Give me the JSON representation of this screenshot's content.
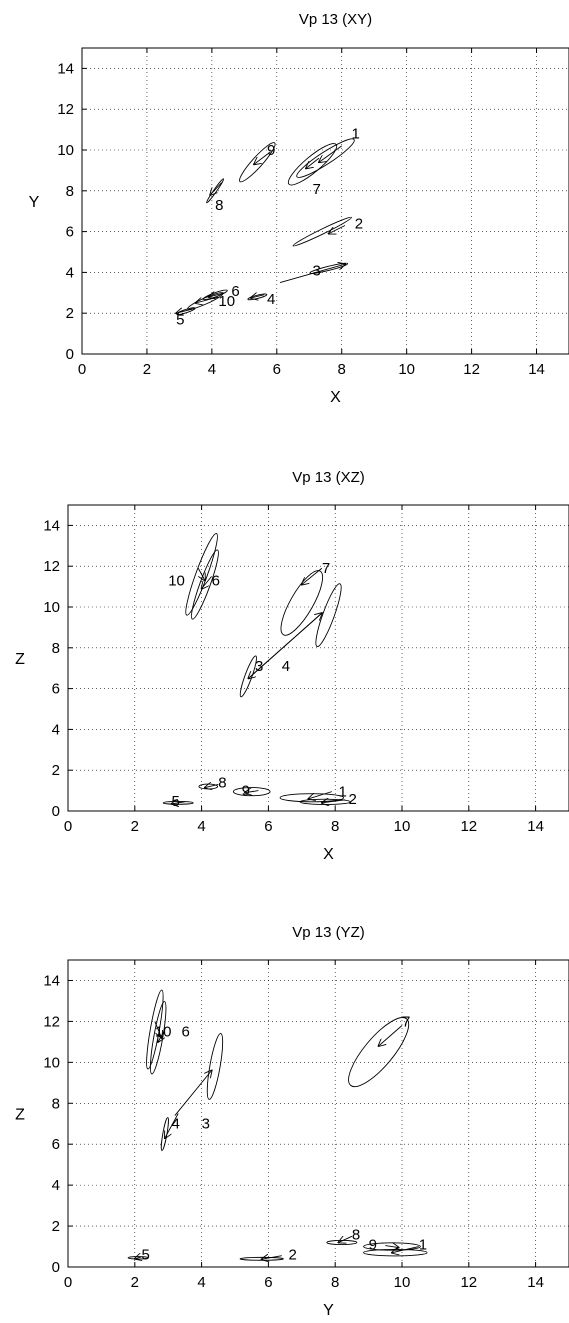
{
  "chart_data": [
    {
      "type": "scatter",
      "title": "Vp 13 (XY)",
      "xlabel": "X",
      "ylabel": "Y",
      "xlim": [
        0,
        15
      ],
      "ylim": [
        0,
        15
      ],
      "xticks": [
        "0",
        "2",
        "4",
        "6",
        "8",
        "10",
        "12",
        "14"
      ],
      "yticks": [
        "0",
        "2",
        "4",
        "6",
        "8",
        "10",
        "12",
        "14"
      ],
      "grid": true,
      "points": [
        {
          "label": "1",
          "x": 7.5,
          "y": 9.6,
          "label_x": 8.3,
          "label_y": 10.8,
          "ellipse": {
            "rx": 1.05,
            "ry": 0.3,
            "angle": 33
          },
          "arrow": [
            8.0,
            10.2,
            7.3,
            9.4
          ]
        },
        {
          "label": "2",
          "x": 7.4,
          "y": 6.0,
          "label_x": 8.4,
          "label_y": 6.4,
          "ellipse": {
            "rx": 1.0,
            "ry": 0.12,
            "angle": 26
          },
          "arrow": [
            8.1,
            6.3,
            7.6,
            5.9
          ]
        },
        {
          "label": "3",
          "x": 7.6,
          "y": 4.2,
          "label_x": 7.1,
          "label_y": 4.1,
          "ellipse": {
            "rx": 0.6,
            "ry": 0.1,
            "angle": 14
          },
          "arrow": [
            6.1,
            3.5,
            8.1,
            4.4
          ]
        },
        {
          "label": "4",
          "x": 5.4,
          "y": 2.8,
          "label_x": 5.7,
          "label_y": 2.7,
          "ellipse": {
            "rx": 0.3,
            "ry": 0.08,
            "angle": 14
          },
          "arrow": [
            5.6,
            2.9,
            5.2,
            2.75
          ]
        },
        {
          "label": "5",
          "x": 3.2,
          "y": 2.1,
          "label_x": 2.9,
          "label_y": 1.7,
          "ellipse": {
            "rx": 0.3,
            "ry": 0.08,
            "angle": 18
          },
          "arrow": [
            3.4,
            2.2,
            2.9,
            2.0
          ]
        },
        {
          "label": "6",
          "x": 4.1,
          "y": 2.9,
          "label_x": 4.6,
          "label_y": 3.1,
          "ellipse": {
            "rx": 0.4,
            "ry": 0.1,
            "angle": 20
          },
          "arrow": [
            4.4,
            3.0,
            3.9,
            2.8
          ]
        },
        {
          "label": "7",
          "x": 7.1,
          "y": 9.3,
          "label_x": 7.1,
          "label_y": 8.1,
          "ellipse": {
            "rx": 0.95,
            "ry": 0.38,
            "angle": 40
          },
          "arrow": [
            7.3,
            9.6,
            6.9,
            9.1
          ]
        },
        {
          "label": "8",
          "x": 4.1,
          "y": 8.0,
          "label_x": 4.1,
          "label_y": 7.3,
          "ellipse": {
            "rx": 0.45,
            "ry": 0.07,
            "angle": 55
          },
          "arrow": [
            4.3,
            8.4,
            3.95,
            7.8
          ]
        },
        {
          "label": "9",
          "x": 5.4,
          "y": 9.4,
          "label_x": 5.7,
          "label_y": 10.0,
          "ellipse": {
            "rx": 0.8,
            "ry": 0.25,
            "angle": 48
          },
          "arrow": [
            5.8,
            9.9,
            5.3,
            9.3
          ]
        },
        {
          "label": "10",
          "x": 3.8,
          "y": 2.6,
          "label_x": 4.2,
          "label_y": 2.6,
          "ellipse": {
            "rx": 0.6,
            "ry": 0.15,
            "angle": 24
          },
          "arrow": [
            4.2,
            2.8,
            3.5,
            2.5
          ]
        }
      ]
    },
    {
      "type": "scatter",
      "title": "Vp 13 (XZ)",
      "xlabel": "X",
      "ylabel": "Z",
      "xlim": [
        0,
        15
      ],
      "ylim": [
        0,
        15
      ],
      "xticks": [
        "0",
        "2",
        "4",
        "6",
        "8",
        "10",
        "12",
        "14"
      ],
      "yticks": [
        "0",
        "2",
        "4",
        "6",
        "8",
        "10",
        "12",
        "14"
      ],
      "grid": true,
      "points": [
        {
          "label": "1",
          "x": 7.3,
          "y": 0.65,
          "label_x": 8.1,
          "label_y": 0.95,
          "ellipse": {
            "rx": 0.95,
            "ry": 0.2,
            "angle": 0
          },
          "arrow": [
            7.9,
            0.95,
            7.2,
            0.6
          ]
        },
        {
          "label": "2",
          "x": 7.7,
          "y": 0.45,
          "label_x": 8.4,
          "label_y": 0.6,
          "ellipse": {
            "rx": 0.75,
            "ry": 0.13,
            "angle": 0
          },
          "arrow": [
            8.3,
            0.55,
            7.6,
            0.4
          ]
        },
        {
          "label": "3",
          "x": 5.4,
          "y": 6.6,
          "label_x": 5.6,
          "label_y": 7.1,
          "ellipse": {
            "rx": 0.65,
            "ry": 0.17,
            "angle": 70
          },
          "arrow": [
            7.6,
            9.7,
            5.4,
            6.5
          ]
        },
        {
          "label": "4",
          "x": 7.8,
          "y": 9.6,
          "label_x": 6.4,
          "label_y": 7.1,
          "ellipse": {
            "rx": 1.0,
            "ry": 0.28,
            "angle": 70
          },
          "arrow": [
            5.4,
            6.5,
            7.6,
            9.7
          ]
        },
        {
          "label": "5",
          "x": 3.3,
          "y": 0.4,
          "label_x": 3.1,
          "label_y": 0.5,
          "ellipse": {
            "rx": 0.45,
            "ry": 0.07,
            "angle": 0
          },
          "arrow": [
            3.5,
            0.45,
            3.1,
            0.35
          ]
        },
        {
          "label": "6",
          "x": 4.1,
          "y": 11.1,
          "label_x": 4.3,
          "label_y": 11.3,
          "ellipse": {
            "rx": 1.1,
            "ry": 0.25,
            "angle": 70
          },
          "arrow": [
            4.3,
            11.5,
            4.0,
            10.9
          ]
        },
        {
          "label": "7",
          "x": 7.0,
          "y": 10.2,
          "label_x": 7.6,
          "label_y": 11.9,
          "ellipse": {
            "rx": 1.1,
            "ry": 0.55,
            "angle": 60
          },
          "arrow": [
            7.6,
            11.9,
            7.0,
            11.1
          ]
        },
        {
          "label": "8",
          "x": 4.2,
          "y": 1.2,
          "label_x": 4.5,
          "label_y": 1.4,
          "ellipse": {
            "rx": 0.28,
            "ry": 0.12,
            "angle": 0
          },
          "arrow": [
            4.5,
            1.3,
            4.1,
            1.15
          ]
        },
        {
          "label": "9",
          "x": 5.5,
          "y": 0.95,
          "label_x": 5.2,
          "label_y": 1.0,
          "ellipse": {
            "rx": 0.55,
            "ry": 0.2,
            "angle": 0
          },
          "arrow": [
            5.7,
            1.0,
            5.3,
            0.9
          ]
        },
        {
          "label": "10",
          "x": 4.0,
          "y": 11.6,
          "label_x": 3.0,
          "label_y": 11.3,
          "ellipse": {
            "rx": 1.3,
            "ry": 0.28,
            "angle": 70
          },
          "arrow": [
            3.9,
            11.9,
            4.1,
            11.3
          ]
        }
      ]
    },
    {
      "type": "scatter",
      "title": "Vp 13 (YZ)",
      "xlabel": "Y",
      "ylabel": "Z",
      "xlim": [
        0,
        15
      ],
      "ylim": [
        0,
        15
      ],
      "xticks": [
        "0",
        "2",
        "4",
        "6",
        "8",
        "10",
        "12",
        "14"
      ],
      "yticks": [
        "0",
        "2",
        "4",
        "6",
        "8",
        "10",
        "12",
        "14"
      ],
      "grid": true,
      "points": [
        {
          "label": "1",
          "x": 9.8,
          "y": 0.7,
          "label_x": 10.5,
          "label_y": 1.1,
          "ellipse": {
            "rx": 0.95,
            "ry": 0.16,
            "angle": 0
          },
          "arrow": [
            10.5,
            1.0,
            9.7,
            0.7
          ]
        },
        {
          "label": "2",
          "x": 5.8,
          "y": 0.4,
          "label_x": 6.6,
          "label_y": 0.6,
          "ellipse": {
            "rx": 0.65,
            "ry": 0.07,
            "angle": 0
          },
          "arrow": [
            6.4,
            0.55,
            5.8,
            0.38
          ]
        },
        {
          "label": "3",
          "x": 4.4,
          "y": 9.8,
          "label_x": 4.0,
          "label_y": 7.0,
          "ellipse": {
            "rx": 1.0,
            "ry": 0.25,
            "angle": 80
          },
          "arrow": [
            3.2,
            7.4,
            4.3,
            9.6
          ]
        },
        {
          "label": "4",
          "x": 2.9,
          "y": 6.5,
          "label_x": 3.1,
          "label_y": 7.0,
          "ellipse": {
            "rx": 0.5,
            "ry": 0.1,
            "angle": 80
          },
          "arrow": [
            3.3,
            7.5,
            2.9,
            6.3
          ]
        },
        {
          "label": "5",
          "x": 2.1,
          "y": 0.45,
          "label_x": 2.2,
          "label_y": 0.6,
          "ellipse": {
            "rx": 0.3,
            "ry": 0.06,
            "angle": 0
          },
          "arrow": [
            2.2,
            0.5,
            2.0,
            0.4
          ]
        },
        {
          "label": "6",
          "x": 2.7,
          "y": 11.2,
          "label_x": 3.4,
          "label_y": 11.5,
          "ellipse": {
            "rx": 1.1,
            "ry": 0.22,
            "angle": 80
          },
          "arrow": [
            2.9,
            11.6,
            2.7,
            11.0
          ]
        },
        {
          "label": "7",
          "x": 9.3,
          "y": 10.5,
          "label_x": 10.0,
          "label_y": 12.0,
          "ellipse": {
            "rx": 1.3,
            "ry": 0.7,
            "angle": 50
          },
          "arrow": [
            10.0,
            11.8,
            9.3,
            10.8
          ]
        },
        {
          "label": "8",
          "x": 8.2,
          "y": 1.2,
          "label_x": 8.5,
          "label_y": 1.6,
          "ellipse": {
            "rx": 0.45,
            "ry": 0.1,
            "angle": 0
          },
          "arrow": [
            8.5,
            1.5,
            8.1,
            1.2
          ]
        },
        {
          "label": "9",
          "x": 9.7,
          "y": 1.0,
          "label_x": 9.0,
          "label_y": 1.1,
          "ellipse": {
            "rx": 0.85,
            "ry": 0.18,
            "angle": 0
          },
          "arrow": [
            9.5,
            1.05,
            9.9,
            0.95
          ]
        },
        {
          "label": "10",
          "x": 2.6,
          "y": 11.6,
          "label_x": 2.6,
          "label_y": 11.5,
          "ellipse": {
            "rx": 1.2,
            "ry": 0.22,
            "angle": 80
          },
          "arrow": [
            2.6,
            12.0,
            2.8,
            11.2
          ]
        }
      ]
    }
  ]
}
